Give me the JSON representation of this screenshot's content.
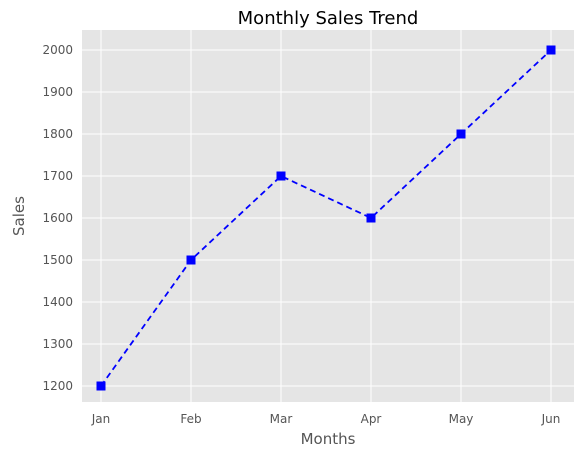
{
  "chart_data": {
    "type": "line",
    "title": "Monthly Sales Trend",
    "xlabel": "Months",
    "ylabel": "Sales",
    "categories": [
      "Jan",
      "Feb",
      "Mar",
      "Apr",
      "May",
      "Jun"
    ],
    "series": [
      {
        "values": [
          1200,
          1500,
          1700,
          1600,
          1800,
          2000
        ],
        "color": "#0000ff",
        "line_style": "dashed",
        "marker": "square"
      }
    ],
    "ylim": [
      1160,
      2040
    ],
    "yticks": [
      1200,
      1300,
      1400,
      1500,
      1600,
      1700,
      1800,
      1900,
      2000
    ],
    "grid": true,
    "legend": "none",
    "colors": {
      "plot_background": "#e5e5e5",
      "grid": "#ffffff",
      "line": "#0000ff"
    }
  }
}
